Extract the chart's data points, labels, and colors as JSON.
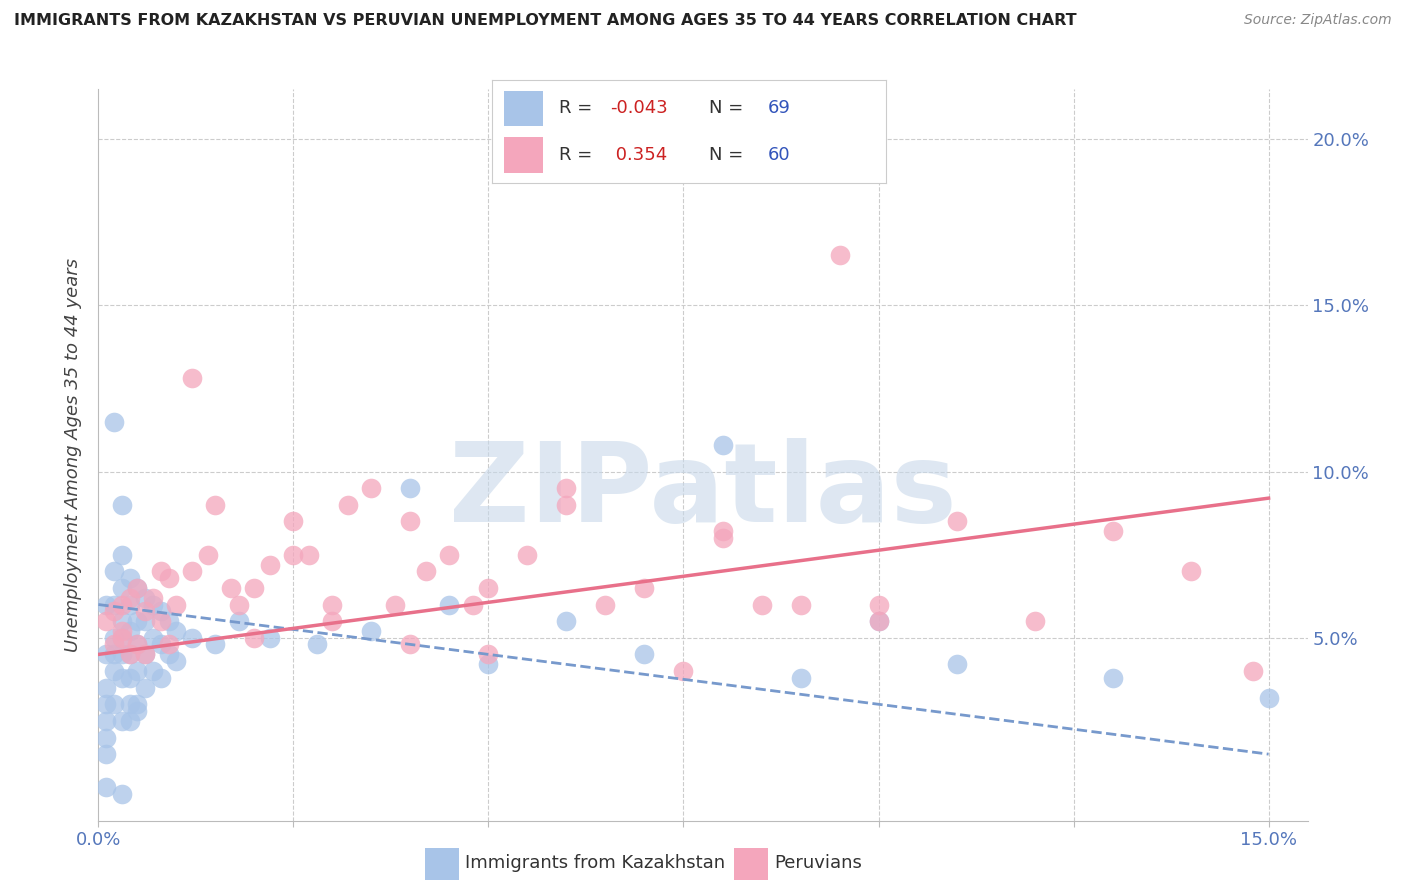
{
  "title": "IMMIGRANTS FROM KAZAKHSTAN VS PERUVIAN UNEMPLOYMENT AMONG AGES 35 TO 44 YEARS CORRELATION CHART",
  "source": "Source: ZipAtlas.com",
  "ylabel": "Unemployment Among Ages 35 to 44 years",
  "color_blue": "#a8c4e8",
  "color_pink": "#f4a6bc",
  "color_blue_line": "#7799cc",
  "color_pink_line": "#e8708a",
  "watermark": "ZIPatlas",
  "watermark_color": "#c8d8ea",
  "xlim": [
    0.0,
    0.155
  ],
  "ylim": [
    -0.005,
    0.215
  ],
  "blue_points_x": [
    0.001,
    0.001,
    0.001,
    0.001,
    0.001,
    0.001,
    0.001,
    0.001,
    0.002,
    0.002,
    0.002,
    0.002,
    0.002,
    0.002,
    0.002,
    0.003,
    0.003,
    0.003,
    0.003,
    0.003,
    0.003,
    0.003,
    0.003,
    0.004,
    0.004,
    0.004,
    0.004,
    0.004,
    0.004,
    0.005,
    0.005,
    0.005,
    0.005,
    0.005,
    0.006,
    0.006,
    0.006,
    0.006,
    0.007,
    0.007,
    0.007,
    0.008,
    0.008,
    0.008,
    0.009,
    0.009,
    0.01,
    0.01,
    0.012,
    0.015,
    0.018,
    0.022,
    0.028,
    0.035,
    0.04,
    0.045,
    0.05,
    0.06,
    0.07,
    0.08,
    0.09,
    0.1,
    0.11,
    0.13,
    0.15,
    0.003,
    0.004,
    0.005
  ],
  "blue_points_y": [
    0.06,
    0.045,
    0.035,
    0.03,
    0.025,
    0.02,
    0.015,
    0.005,
    0.07,
    0.06,
    0.05,
    0.045,
    0.04,
    0.03,
    0.115,
    0.09,
    0.075,
    0.065,
    0.055,
    0.05,
    0.045,
    0.038,
    0.025,
    0.068,
    0.06,
    0.052,
    0.045,
    0.038,
    0.03,
    0.065,
    0.055,
    0.048,
    0.04,
    0.03,
    0.062,
    0.055,
    0.045,
    0.035,
    0.06,
    0.05,
    0.04,
    0.058,
    0.048,
    0.038,
    0.055,
    0.045,
    0.052,
    0.043,
    0.05,
    0.048,
    0.055,
    0.05,
    0.048,
    0.052,
    0.095,
    0.06,
    0.042,
    0.055,
    0.045,
    0.108,
    0.038,
    0.055,
    0.042,
    0.038,
    0.032,
    0.003,
    0.025,
    0.028
  ],
  "pink_points_x": [
    0.001,
    0.002,
    0.002,
    0.003,
    0.003,
    0.004,
    0.004,
    0.005,
    0.005,
    0.006,
    0.007,
    0.008,
    0.008,
    0.009,
    0.01,
    0.012,
    0.014,
    0.015,
    0.017,
    0.018,
    0.02,
    0.022,
    0.025,
    0.027,
    0.03,
    0.032,
    0.035,
    0.038,
    0.04,
    0.042,
    0.045,
    0.048,
    0.05,
    0.055,
    0.06,
    0.065,
    0.07,
    0.075,
    0.08,
    0.085,
    0.09,
    0.095,
    0.1,
    0.11,
    0.12,
    0.13,
    0.14,
    0.148,
    0.003,
    0.006,
    0.009,
    0.012,
    0.02,
    0.025,
    0.03,
    0.04,
    0.05,
    0.06,
    0.08,
    0.1
  ],
  "pink_points_y": [
    0.055,
    0.058,
    0.048,
    0.06,
    0.052,
    0.062,
    0.045,
    0.065,
    0.048,
    0.058,
    0.062,
    0.07,
    0.055,
    0.068,
    0.06,
    0.128,
    0.075,
    0.09,
    0.065,
    0.06,
    0.065,
    0.072,
    0.085,
    0.075,
    0.06,
    0.09,
    0.095,
    0.06,
    0.085,
    0.07,
    0.075,
    0.06,
    0.065,
    0.075,
    0.095,
    0.06,
    0.065,
    0.04,
    0.082,
    0.06,
    0.06,
    0.165,
    0.055,
    0.085,
    0.055,
    0.082,
    0.07,
    0.04,
    0.05,
    0.045,
    0.048,
    0.07,
    0.05,
    0.075,
    0.055,
    0.048,
    0.045,
    0.09,
    0.08,
    0.06
  ]
}
